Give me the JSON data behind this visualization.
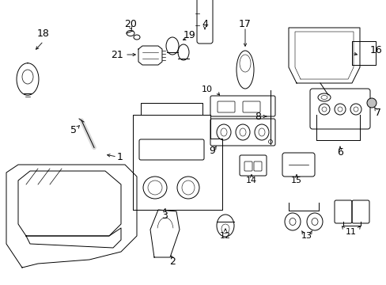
{
  "bg_color": "#ffffff",
  "lc": "#000000",
  "fig_w": 4.89,
  "fig_h": 3.6,
  "dpi": 100,
  "xmax": 489,
  "ymax": 360
}
